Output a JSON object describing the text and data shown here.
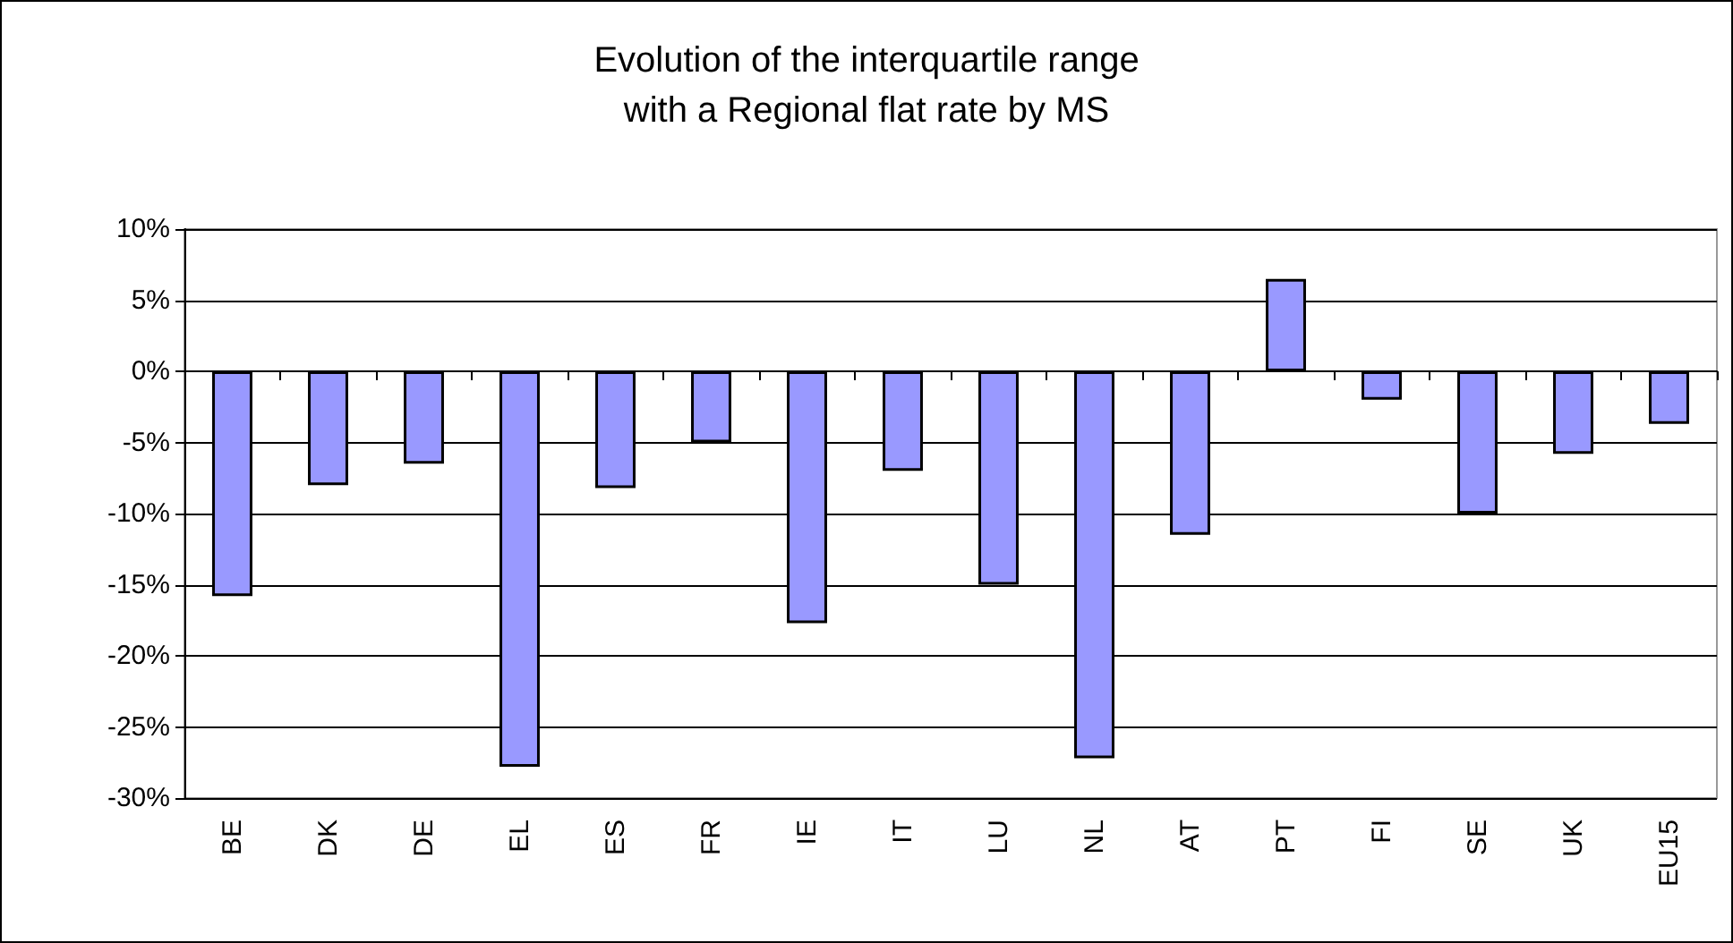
{
  "chart_data": {
    "type": "bar",
    "title": "Evolution of the interquartile range\nwith a Regional flat rate by MS",
    "categories": [
      "BE",
      "DK",
      "DE",
      "EL",
      "ES",
      "FR",
      "IE",
      "IT",
      "LU",
      "NL",
      "AT",
      "PT",
      "FI",
      "SE",
      "UK",
      "EU15"
    ],
    "values": [
      -15.8,
      -8.0,
      -6.5,
      -27.8,
      -8.2,
      -5.0,
      -17.7,
      -7.0,
      -15.0,
      -27.2,
      -11.5,
      6.5,
      -2.0,
      -10.0,
      -5.8,
      -3.7
    ],
    "color": "#9999ff",
    "ylim": [
      -30,
      10
    ],
    "yticks": [
      {
        "value": -30,
        "label": "-30%"
      },
      {
        "value": -25,
        "label": "-25%"
      },
      {
        "value": -20,
        "label": "-20%"
      },
      {
        "value": -15,
        "label": "-15%"
      },
      {
        "value": -10,
        "label": "-10%"
      },
      {
        "value": -5,
        "label": "-5%"
      },
      {
        "value": 0,
        "label": "0%"
      },
      {
        "value": 5,
        "label": "5%"
      },
      {
        "value": 10,
        "label": "10%"
      }
    ],
    "grid": "y"
  }
}
